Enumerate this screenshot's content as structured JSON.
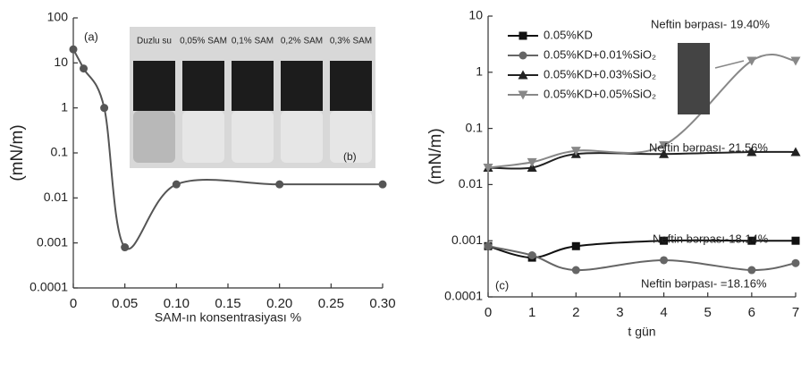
{
  "chart_data": [
    {
      "type": "line",
      "log_y": true,
      "y_label": "(mN/m)",
      "x_label": "SAM-ın konsentrasiyası %",
      "tag": "(a)",
      "x": [
        0,
        0.01,
        0.03,
        0.05,
        0.1,
        0.2,
        0.3
      ],
      "values": [
        20,
        7.5,
        1,
        0.0008,
        0.02,
        0.02,
        0.02
      ],
      "color": "#555555",
      "xlim": [
        0,
        0.3
      ],
      "xticks": [
        0,
        0.05,
        {
          "value": 0.1,
          "label": "0.10"
        },
        0.15,
        {
          "value": 0.2,
          "label": "0.20"
        },
        0.25,
        {
          "value": 0.3,
          "label": "0.30"
        }
      ],
      "ylim": [
        0.0001,
        100
      ],
      "yticks": [
        0.0001,
        0.001,
        0.01,
        0.1,
        1,
        10,
        100
      ],
      "inset": {
        "labels": [
          "Duzlu su",
          "0,05% SAM",
          "0,1% SAM",
          "0,2% SAM",
          "0,3% SAM"
        ],
        "tag": "(b)"
      }
    },
    {
      "type": "line",
      "log_y": true,
      "y_label": "(mN/m)",
      "x_label": "t gün",
      "tag": "(c)",
      "xlim": [
        0,
        7
      ],
      "xticks": [
        0,
        1,
        2,
        3,
        4,
        5,
        6,
        7
      ],
      "ylim": [
        0.0001,
        10
      ],
      "yticks": [
        0.0001,
        0.001,
        0.01,
        0.1,
        1,
        10
      ],
      "series": [
        {
          "name": "0.05%KD",
          "color": "#111111",
          "marker": "square",
          "x": [
            0,
            1,
            2,
            4,
            6,
            7
          ],
          "values": [
            0.0008,
            0.0005,
            0.0008,
            0.001,
            0.001,
            0.001
          ]
        },
        {
          "name": "0.05%KD+0.01%SiO₂",
          "color": "#666666",
          "marker": "circle",
          "x": [
            0,
            1,
            2,
            4,
            6,
            7
          ],
          "values": [
            0.0008,
            0.00055,
            0.0003,
            0.00045,
            0.0003,
            0.0004
          ]
        },
        {
          "name": "0.05%KD+0.03%SiO₂",
          "color": "#222222",
          "marker": "triangle",
          "x": [
            0,
            1,
            2,
            4,
            6,
            7
          ],
          "values": [
            0.02,
            0.02,
            0.035,
            0.035,
            0.038,
            0.038
          ]
        },
        {
          "name": "0.05%KD+0.05%SiO₂",
          "color": "#888888",
          "marker": "triangle-down",
          "x": [
            0,
            1,
            2,
            4,
            6,
            7
          ],
          "values": [
            0.02,
            0.025,
            0.04,
            0.05,
            1.6,
            1.6
          ]
        }
      ],
      "annotations": [
        "Neftin bərpası- 19.40%",
        "Neftin bərpası- 21.56%",
        "Neftin bərpası-18.14%",
        "Neftin bərpası- =18.16%"
      ]
    }
  ]
}
